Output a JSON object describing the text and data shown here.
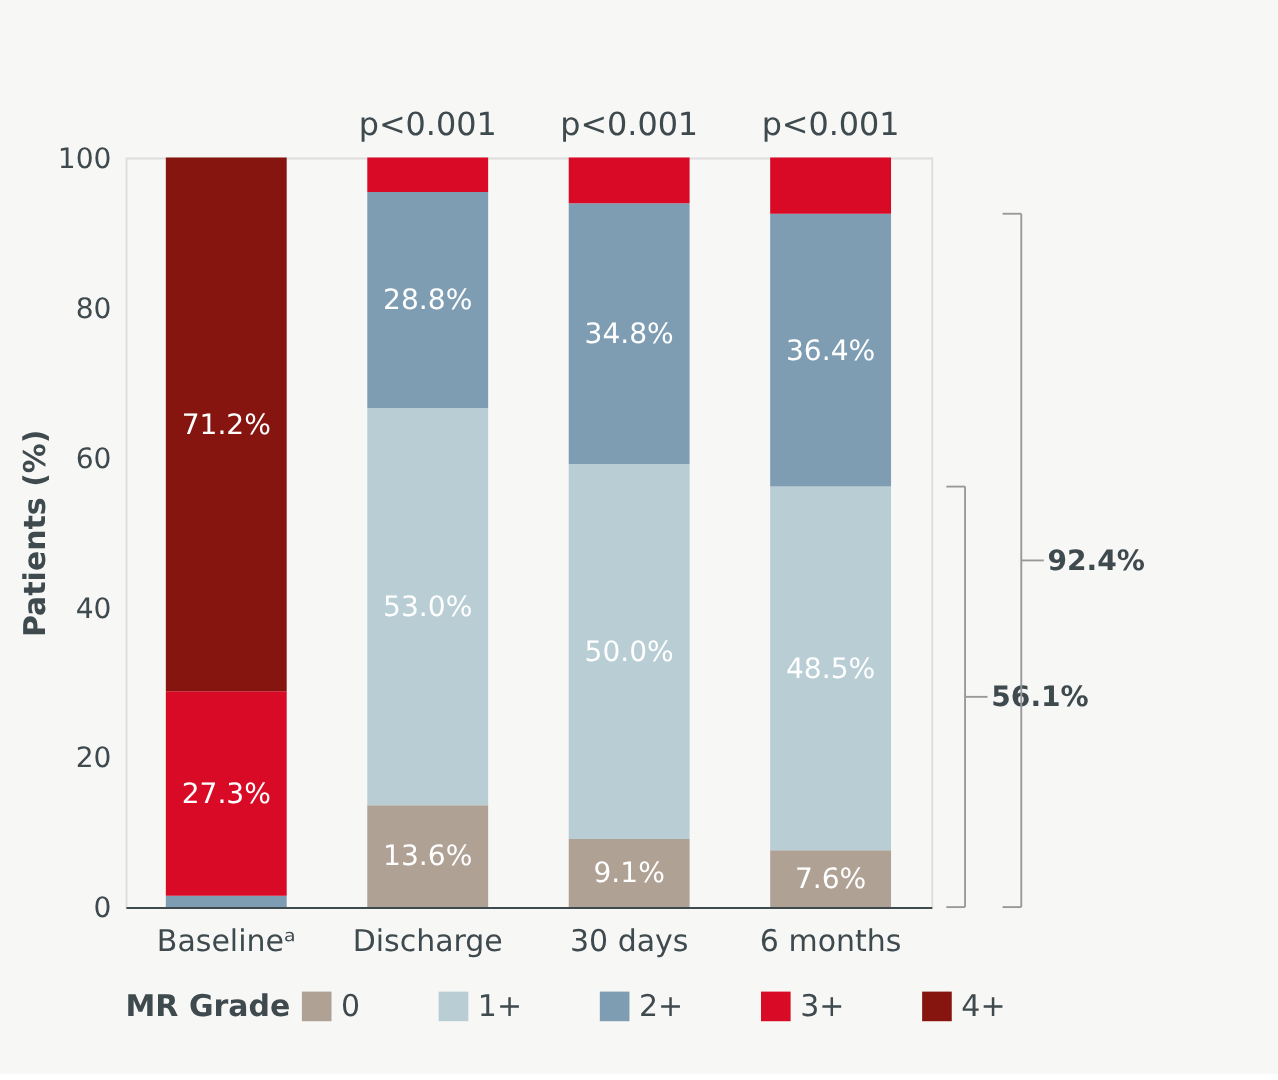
{
  "chart_data": {
    "type": "bar",
    "stacked": true,
    "ylabel": "Patients (%)",
    "legend_title": "MR Grade",
    "legend": "bottom",
    "grid": false,
    "categories": [
      "Baselineᵃ",
      "Discharge",
      "30 days",
      "6 months"
    ],
    "ylim": [
      0,
      100
    ],
    "yticks": [
      0,
      20,
      40,
      60,
      80,
      100
    ],
    "series": [
      {
        "name": "0",
        "color": "#b0a195",
        "values": [
          0,
          13.6,
          9.1,
          7.6
        ],
        "value_labels": [
          null,
          "13.6%",
          "9.1%",
          "7.6%"
        ]
      },
      {
        "name": "1+",
        "color": "#b8cdd4",
        "values": [
          0,
          53.0,
          50.0,
          48.5
        ],
        "value_labels": [
          null,
          "53.0%",
          "50.0%",
          "48.5%"
        ]
      },
      {
        "name": "2+",
        "color": "#7e9db2",
        "values": [
          1.5,
          28.8,
          34.8,
          36.4
        ],
        "value_labels": [
          null,
          "28.8%",
          "34.8%",
          "36.4%"
        ]
      },
      {
        "name": "3+",
        "color": "#d80a26",
        "values": [
          27.3,
          4.6,
          6.1,
          7.5
        ],
        "value_labels": [
          "27.3%",
          null,
          null,
          null
        ]
      },
      {
        "name": "4+",
        "color": "#861510",
        "values": [
          71.2,
          0,
          0,
          0
        ],
        "value_labels": [
          "71.2%",
          null,
          null,
          null
        ]
      }
    ],
    "annotations": [
      "p<0.001",
      "p<0.001",
      "p<0.001",
      "92.4%",
      "56.1%"
    ]
  }
}
